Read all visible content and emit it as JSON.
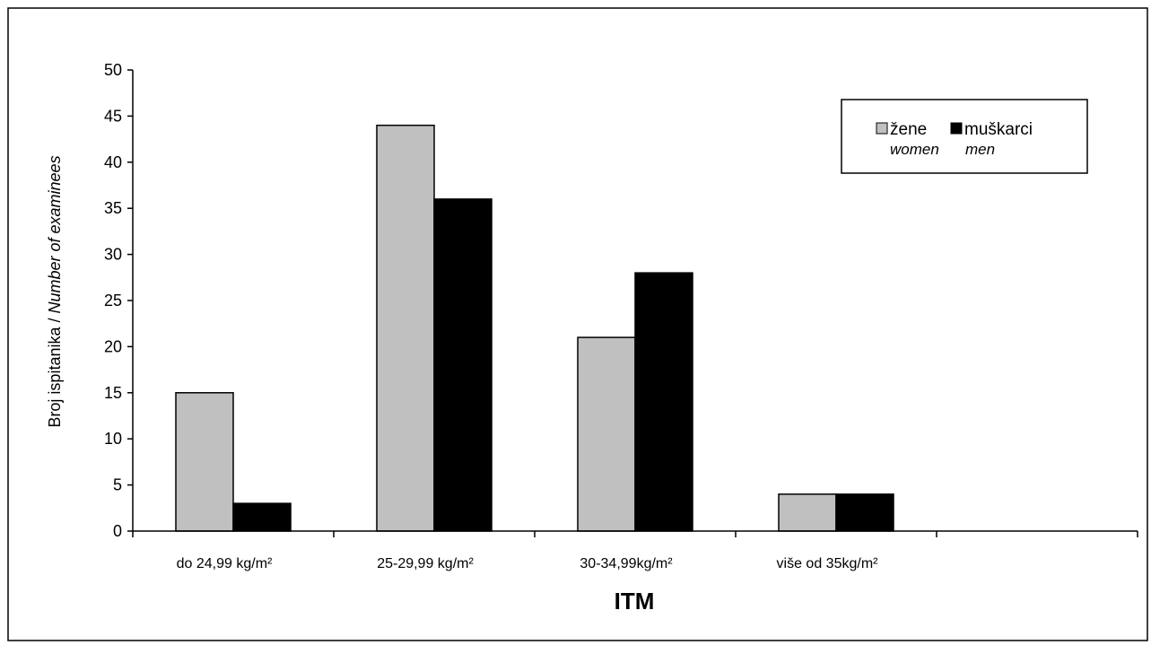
{
  "chart_data": {
    "type": "bar",
    "categories": [
      "do 24,99 kg/m²",
      "25-29,99 kg/m²",
      "30-34,99kg/m²",
      "više od 35kg/m²",
      ""
    ],
    "series": [
      {
        "name": "žene",
        "subname": "women",
        "color": "#c0c0c0",
        "values": [
          15,
          44,
          21,
          4,
          null
        ]
      },
      {
        "name": "muškarci",
        "subname": "men",
        "color": "#000000",
        "values": [
          3,
          36,
          28,
          4,
          null
        ]
      }
    ],
    "title": "",
    "xlabel": "ITM",
    "ylabel": "Broj ispitanika / ",
    "ylabel_italic": "Number of examinees",
    "ylim": [
      0,
      50
    ],
    "yticks": [
      0,
      5,
      10,
      15,
      20,
      25,
      30,
      35,
      40,
      45,
      50
    ],
    "grid": false,
    "legend_position": "top-right"
  }
}
